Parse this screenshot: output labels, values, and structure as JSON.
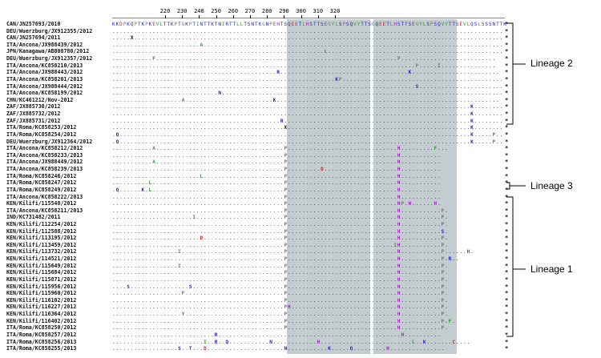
{
  "ruler_ticks": [
    "220",
    "230",
    "240",
    "250",
    "260",
    "270",
    "280",
    "290",
    "300",
    "310",
    "320"
  ],
  "lineages": [
    {
      "label": "Lineage 2"
    },
    {
      "label": "Lineage 3"
    },
    {
      "label": "Lineage 1"
    }
  ],
  "reference_sequence": "KKDPKQPTKPKEVLTTKPTGKPTINTTKTNIRTTLLTSNTKGNPEHTSQEETLHSTTSEGYLSPSQVYTTSGQEETLHSTTSEGYLSPSQVYTTSEVLQSLSSSNTTK",
  "rows": [
    {
      "name": "CAN/JN257693/2010",
      "seq": "KKDPKQPTKPKEVLTTKPTGKPTINTTKTNIRTTLLTSNTKGNPEHTSQEETLHSTTSEGYLSPSQVYTTSGQEETLHSTTSEGYLSPSQVYTTSEVLQSLSSSNTTK"
    },
    {
      "name": "DEU/Wuerzburg/JX912355/2012",
      "seq": "..........................................................................................................."
    },
    {
      "name": "CAN/JN257694/2011",
      "seq": ".....X....................................................................................................."
    },
    {
      "name": "ITA/Ancona/JX988439/2012",
      "seq": "........................A.................................................................................."
    },
    {
      "name": "JPN/Kanagawa/AB808780/2012",
      "seq": "..........................................................L................................................"
    },
    {
      "name": "DEU/Wuerzburg/JX912357/2012",
      "seq": "...........F..................................................................P.........................."
    },
    {
      "name": "ITA/Ancona/KC858210/2013",
      "seq": "...................................................................................P.....I..............."
    },
    {
      "name": "ITA/Ancona/JX988443/2012",
      "seq": ".............................................R...................................K........................"
    },
    {
      "name": "ITA/Ancona/KC858201/2013",
      "seq": ".............................................................KP............................................"
    },
    {
      "name": "ITA/Ancona/JX988444/2012",
      "seq": "...................................................................................S......................."
    },
    {
      "name": "ITA/Ancona/KC858199/2012",
      "seq": ".............................N............................................................................."
    },
    {
      "name": "CHN/KC461212/Nov-2012",
      "seq": "...................A........................K............................................................."
    },
    {
      "name": "ZAF/JX885730/2012",
      "seq": "..................................................................................................K........"
    },
    {
      "name": "ZAF/JX885732/2012",
      "seq": "..................................................................................................K........"
    },
    {
      "name": "ZAF/JX885731/2012",
      "seq": "..............................................R...................................................K........"
    },
    {
      "name": "ITA/Roma/KC858253/2012",
      "seq": "...............................................X..................................................K........"
    },
    {
      "name": "ITA/Roma/KC858254/2012",
      "seq": ".Q................................................................................................K.....P.."
    },
    {
      "name": "DEU/Wuerzburg/JX912364/2012",
      "seq": ".Q................................................................................................K.....P.."
    },
    {
      "name": "ITA/Ancona/KC858212/2012",
      "seq": "...........A...................................P..............................H.........F..."
    },
    {
      "name": "ITA/Ancona/KC858233/2013",
      "seq": "...............................................P..............................H..........."
    },
    {
      "name": "ITA/Ancona/JX988449/2012",
      "seq": "...........A...................................P..............................H..........."
    },
    {
      "name": "ITA/Ancona/KC858239/2013",
      "seq": "...............................................P.........D....................H..........."
    },
    {
      "name": "ITA/Roma/KC858246/2012",
      "seq": "........................L......................P..............................H..........."
    },
    {
      "name": "ITA/Roma/KC858247/2012",
      "seq": "..........L....................................P..............................H..........."
    },
    {
      "name": "ITA/Roma/KC858249/2012",
      "seq": ".Q......K.L....................................P..............................H..........."
    },
    {
      "name": "ITA/Ancona/KC858222/2013",
      "seq": "...............................................P..............................H..........."
    },
    {
      "name": "KEN/Kilifi/115548/2012",
      "seq": "...............................................P..............................HP.H......H."
    },
    {
      "name": "ITA/Ancona/KC858211/2013",
      "seq": "...............................................P..............................H...........P."
    },
    {
      "name": "IND/KC731482/2011",
      "seq": "......................I........................P..............................H...........P."
    },
    {
      "name": "KEN/Kilifi/112254/2012",
      "seq": "...............................................P..............................H...........P."
    },
    {
      "name": "KEN/Kilifi/112588/2012",
      "seq": "...............................................P..............................H...........S."
    },
    {
      "name": "KEN/Kilifi/113195/2012",
      "seq": "........................D......................P..............................H...........P."
    },
    {
      "name": "KEN/Kilifi/113459/2012",
      "seq": "...............................................P.............................IH...........P."
    },
    {
      "name": "KEN/Kilifi/113732/2012",
      "seq": "..................I............................P..............................H...........P......H."
    },
    {
      "name": "KEN/Kilifi/114521/2012",
      "seq": "...............................................P..............................H...........P.R.."
    },
    {
      "name": "KEN/Kilifi/115649/2012",
      "seq": "..................I............................P..............................H...........P."
    },
    {
      "name": "KEN/Kilifi/115684/2012",
      "seq": "...............................................P..............................H...........P."
    },
    {
      "name": "KEN/Kilifi/115871/2012",
      "seq": "...............................................P..............................H...........P."
    },
    {
      "name": "KEN/Kilifi/115956/2012",
      "seq": "....S................S.........................P..............................H...........P."
    },
    {
      "name": "KEN/Kilifi/115960/2012",
      "seq": "...................F...........................P..............................H...........P."
    },
    {
      "name": "KEN/Kilifi/116102/2012",
      "seq": "...............................................P..............................H...........P."
    },
    {
      "name": "KEN/Kilifi/116227/2012",
      "seq": "...............................................PH.............................H...........P."
    },
    {
      "name": "KEN/Kilifi/116364/2012",
      "seq": "...................Y...........................P..............................H...........P."
    },
    {
      "name": "KEN/Kilifi/116402/2012",
      "seq": "...............................................P..............................H...........P.F."
    },
    {
      "name": "ITA/Roma/KC858250/2012",
      "seq": "...............................................P..............................H...........P."
    },
    {
      "name": "ITA/Roma/KC858257/2012",
      "seq": "............................R..................................................H.........."
    },
    {
      "name": "ITA/Roma/KC858256/2013",
      "seq": ".........................I..R..Q...........N............H.........................L..K.......C...."
    },
    {
      "name": "ITA/Roma/KC858255/2013",
      "seq": "..................S..T...D.....................N...........K.....Q.........H..............."
    }
  ],
  "highlight_rows_dim": "",
  "colors": {
    "shade": "#b8c4c8",
    "text": "#333333",
    "mut_red": "#cc2020",
    "mut_blue": "#2020cc",
    "mut_green": "#2a9a2a",
    "mut_purple": "#a020c0"
  }
}
